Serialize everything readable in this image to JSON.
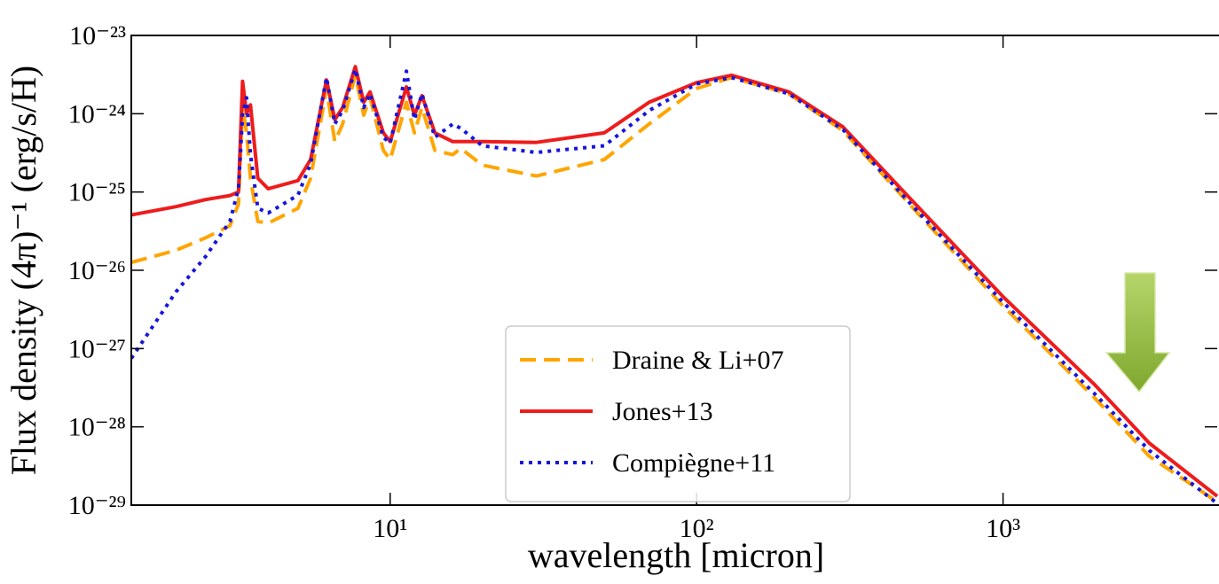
{
  "chart_data": {
    "type": "line",
    "xlabel": "wavelength [micron]",
    "ylabel": "Flux density (4π)⁻¹ (erg/s/H)",
    "xscale": "log",
    "yscale": "log",
    "xlim": [
      1.43,
      5000
    ],
    "ylim": [
      1e-29,
      1e-23
    ],
    "xticks": [
      {
        "value": 10,
        "label": "10¹"
      },
      {
        "value": 100,
        "label": "10²"
      },
      {
        "value": 1000,
        "label": "10³"
      }
    ],
    "yticks": [
      {
        "value": 1e-29,
        "label": "10⁻²⁹"
      },
      {
        "value": 1e-28,
        "label": "10⁻²⁸"
      },
      {
        "value": 1e-27,
        "label": "10⁻²⁷"
      },
      {
        "value": 1e-26,
        "label": "10⁻²⁶"
      },
      {
        "value": 1e-25,
        "label": "10⁻²⁵"
      },
      {
        "value": 1e-24,
        "label": "10⁻²⁴"
      },
      {
        "value": 1e-23,
        "label": "10⁻²³"
      }
    ],
    "legend": "lower-center",
    "x": [
      1.43,
      2,
      2.5,
      3,
      3.2,
      3.3,
      3.4,
      3.5,
      3.7,
      4,
      5,
      5.5,
      6.2,
      6.6,
      7,
      7.7,
      8.2,
      8.6,
      9.5,
      10,
      11.3,
      12,
      12.7,
      14,
      16,
      17,
      20,
      30,
      50,
      70,
      100,
      130,
      200,
      300,
      500,
      1000,
      2000,
      3000,
      5000
    ],
    "series": [
      {
        "name": "Draine & Li+07",
        "color": "#ffa500",
        "linestyle": "dashed",
        "values": [
          1.26e-26,
          1.8e-26,
          2.6e-26,
          3.7e-26,
          7e-26,
          1.3e-24,
          5.7e-25,
          1.5e-25,
          4.2e-26,
          4e-26,
          6.2e-26,
          1.5e-25,
          2.1e-24,
          4.4e-25,
          7.4e-25,
          3.1e-24,
          9.6e-25,
          1.6e-24,
          3.4e-25,
          2.6e-25,
          1.4e-24,
          5.7e-25,
          1.2e-24,
          3.4e-25,
          3e-25,
          3.6e-25,
          2.2e-25,
          1.6e-25,
          2.6e-25,
          7.4e-25,
          2.1e-24,
          2.9e-24,
          1.8e-24,
          6.1e-25,
          6.7e-26,
          3.5e-27,
          2.3e-28,
          4.2e-29,
          1.1e-29
        ]
      },
      {
        "name": "Jones+13",
        "color": "#ee1c1c",
        "linestyle": "solid",
        "values": [
          5.1e-26,
          6.5e-26,
          8e-26,
          9e-26,
          1e-25,
          2.6e-24,
          1e-24,
          1.3e-24,
          1.5e-25,
          1.1e-25,
          1.4e-25,
          2.6e-25,
          2.7e-24,
          8.4e-25,
          1.2e-24,
          4e-24,
          1.4e-24,
          1.9e-24,
          5.7e-25,
          4.4e-25,
          2.2e-24,
          9.6e-25,
          1.7e-24,
          5.7e-25,
          4.4e-25,
          4.4e-25,
          4.4e-25,
          4.3e-25,
          5.7e-25,
          1.4e-24,
          2.5e-24,
          3.1e-24,
          1.9e-24,
          6.8e-25,
          8.1e-26,
          4.6e-27,
          3.4e-28,
          6.2e-29,
          1.3e-29
        ]
      },
      {
        "name": "Compiègne+11",
        "color": "#1515dd",
        "linestyle": "dotted",
        "values": [
          7.5e-28,
          5.3e-27,
          1.5e-26,
          4.2e-26,
          1.1e-25,
          9.6e-25,
          1.6e-24,
          3e-25,
          6.2e-26,
          5.4e-26,
          9.1e-26,
          2.3e-25,
          2.9e-24,
          7.4e-25,
          1.1e-24,
          3.7e-24,
          1.2e-24,
          1.8e-24,
          5e-25,
          4.2e-25,
          3.5e-24,
          8.4e-25,
          1.8e-24,
          5e-25,
          7.4e-25,
          6.5e-25,
          3.9e-25,
          3.2e-25,
          3.9e-25,
          1.1e-24,
          2.4e-24,
          2.9e-24,
          1.8e-24,
          6.3e-25,
          7e-26,
          3.9e-27,
          2.6e-28,
          5e-29,
          1.05e-29
        ]
      }
    ]
  }
}
